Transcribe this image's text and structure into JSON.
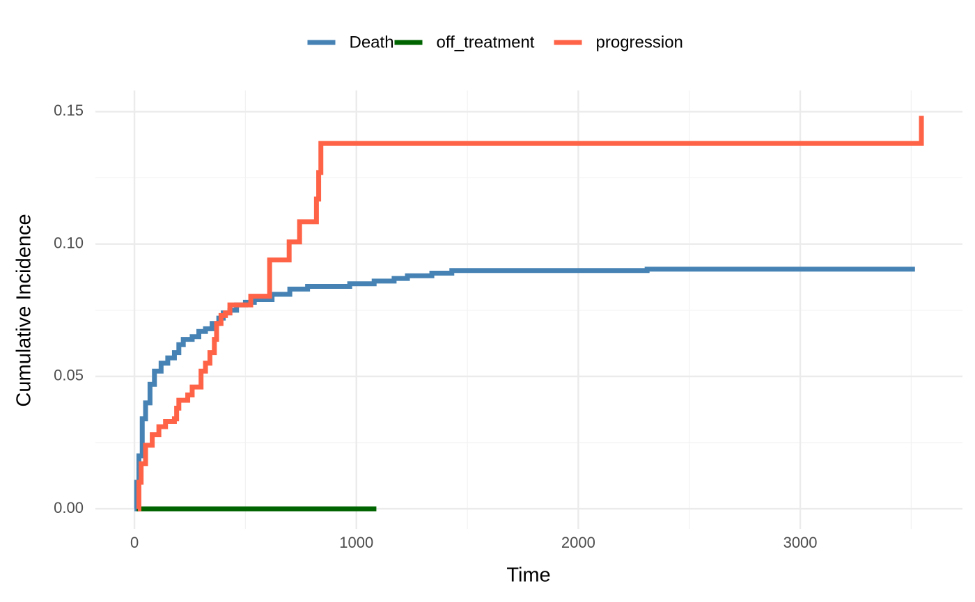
{
  "chart_data": {
    "type": "line",
    "step": true,
    "x_label": "Time",
    "y_label": "Cumulative Incidence",
    "xlim": [
      -176,
      3731
    ],
    "ylim": [
      -0.0076,
      0.158
    ],
    "xticks": [
      0,
      1000,
      2000,
      3000
    ],
    "x_minor_ticks": [
      500,
      1500,
      2500,
      3500
    ],
    "yticks": [
      {
        "value": 0,
        "label": "0.00"
      },
      {
        "value": 0.05,
        "label": "0.05"
      },
      {
        "value": 0.1,
        "label": "0.10"
      },
      {
        "value": 0.15,
        "label": "0.15"
      }
    ],
    "y_minor_ticks": [
      0.025,
      0.075,
      0.125
    ],
    "grid": true,
    "legend": "top",
    "series": [
      {
        "name": "Death",
        "color": "#4682b4",
        "x": [
          0,
          10,
          20,
          35,
          50,
          70,
          90,
          120,
          150,
          180,
          200,
          220,
          260,
          290,
          320,
          350,
          380,
          400,
          430,
          460,
          500,
          540,
          620,
          700,
          780,
          970,
          1080,
          1170,
          1230,
          1340,
          1430,
          2310,
          3517
        ],
        "values": [
          0,
          0.01,
          0.02,
          0.034,
          0.04,
          0.047,
          0.052,
          0.055,
          0.057,
          0.059,
          0.062,
          0.064,
          0.065,
          0.067,
          0.068,
          0.07,
          0.072,
          0.074,
          0.075,
          0.077,
          0.078,
          0.079,
          0.081,
          0.083,
          0.084,
          0.085,
          0.086,
          0.087,
          0.088,
          0.089,
          0.09,
          0.0905,
          0.0905
        ]
      },
      {
        "name": "off_treatment",
        "color": "#006400",
        "x": [
          10,
          1090
        ],
        "values": [
          0,
          0
        ]
      },
      {
        "name": "progression",
        "color": "#ff6347",
        "x": [
          15,
          20,
          30,
          50,
          80,
          110,
          140,
          180,
          190,
          200,
          240,
          260,
          300,
          320,
          340,
          360,
          370,
          390,
          410,
          430,
          524,
          609,
          697,
          744,
          820,
          830,
          840,
          3546
        ],
        "values": [
          0,
          0.01,
          0.017,
          0.024,
          0.028,
          0.031,
          0.033,
          0.034,
          0.038,
          0.041,
          0.043,
          0.046,
          0.052,
          0.055,
          0.059,
          0.064,
          0.07,
          0.073,
          0.074,
          0.077,
          0.0803,
          0.094,
          0.1008,
          0.1084,
          0.117,
          0.127,
          0.138,
          0.1484
        ]
      }
    ]
  }
}
